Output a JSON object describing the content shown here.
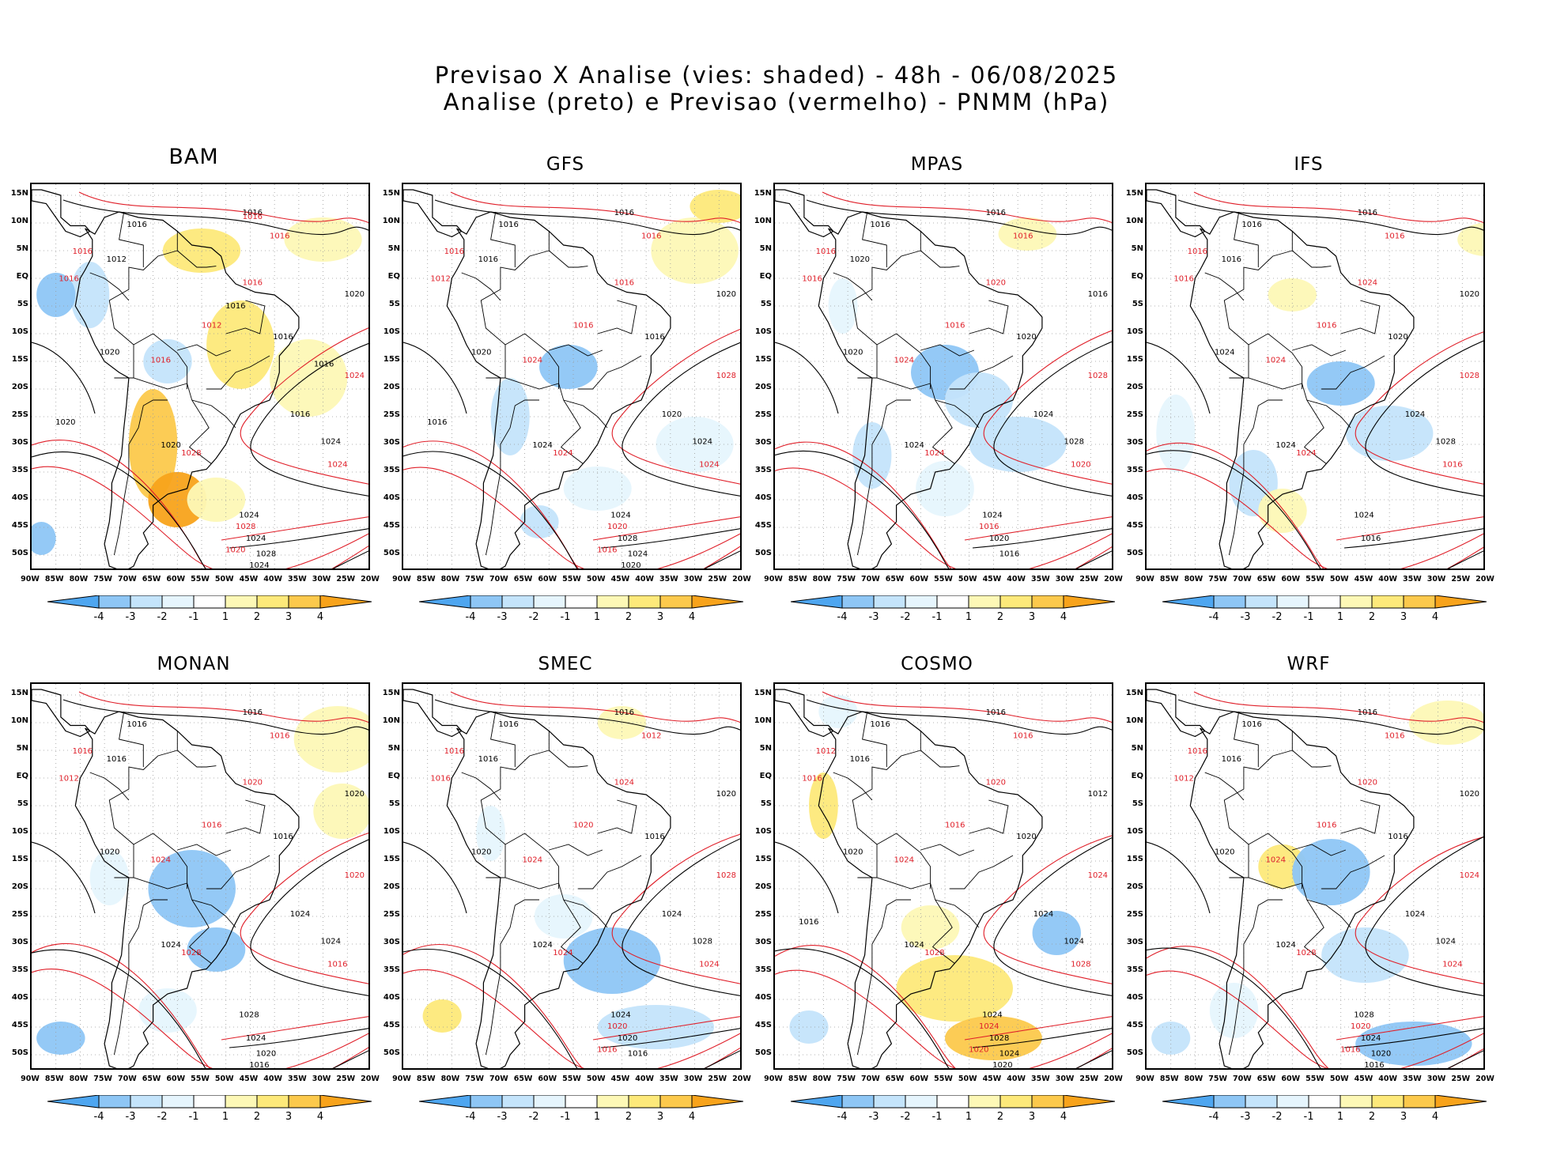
{
  "header": {
    "title_line1": "Previsao X Analise (vies: shaded) - 48h - 06/08/2025",
    "title_line2": "Analise (preto) e Previsao (vermelho) - PNMM (hPa)"
  },
  "colors": {
    "neg4": "#4ea6f0",
    "neg3": "#8ec6f5",
    "neg2": "#c4e4fb",
    "neg1": "#e6f5fd",
    "pos1": "#fdf8b6",
    "pos2": "#fde97a",
    "pos3": "#fcc94c",
    "pos4": "#f8a31b",
    "analysis_contour": "#000000",
    "forecast_contour": "#e0202a"
  },
  "colorbar": {
    "labels": [
      "-4",
      "-3",
      "-2",
      "-1",
      "1",
      "2",
      "3",
      "4"
    ]
  },
  "lat_labels": [
    "15N",
    "10N",
    "5N",
    "EQ",
    "5S",
    "10S",
    "15S",
    "20S",
    "25S",
    "30S",
    "35S",
    "40S",
    "45S",
    "50S"
  ],
  "lon_labels": [
    "90W",
    "85W",
    "80W",
    "75W",
    "70W",
    "65W",
    "60W",
    "55W",
    "50W",
    "45W",
    "40W",
    "35W",
    "30W",
    "25W",
    "20W"
  ],
  "panels": [
    {
      "name": "BAM",
      "contour_labels_black": [
        "1016",
        "1016",
        "1012",
        "1020",
        "1016",
        "1020",
        "1016",
        "1020",
        "1024",
        "1024",
        "1024",
        "1028",
        "1024",
        "1020",
        "1016",
        "1016"
      ],
      "contour_labels_red": [
        "1016",
        "1016",
        "1016",
        "1012",
        "1016",
        "1016",
        "1024",
        "1028",
        "1024",
        "1028",
        "1020",
        "1016"
      ]
    },
    {
      "name": "GFS",
      "contour_labels_black": [
        "1016",
        "1016",
        "1016",
        "1020",
        "1016",
        "1020",
        "1020",
        "1024",
        "1024",
        "1024",
        "1028",
        "1024",
        "1020",
        "1016"
      ],
      "contour_labels_red": [
        "1016",
        "1016",
        "1012",
        "1016",
        "1016",
        "1024",
        "1028",
        "1024",
        "1024",
        "1020",
        "1016"
      ]
    },
    {
      "name": "MPAS",
      "contour_labels_black": [
        "1016",
        "1016",
        "1020",
        "1016",
        "1020",
        "1020",
        "1024",
        "1024",
        "1028",
        "1024",
        "1020",
        "1016"
      ],
      "contour_labels_red": [
        "1016",
        "1016",
        "1016",
        "1016",
        "1020",
        "1024",
        "1028",
        "1024",
        "1020",
        "1016"
      ]
    },
    {
      "name": "IFS",
      "contour_labels_black": [
        "1016",
        "1016",
        "1016",
        "1020",
        "1020",
        "1024",
        "1024",
        "1024",
        "1028",
        "1024",
        "1016"
      ],
      "contour_labels_red": [
        "1016",
        "1016",
        "1016",
        "1016",
        "1024",
        "1024",
        "1028",
        "1024",
        "1016"
      ]
    },
    {
      "name": "MONAN",
      "contour_labels_black": [
        "1016",
        "1016",
        "1016",
        "1020",
        "1016",
        "1020",
        "1024",
        "1024",
        "1024",
        "1028",
        "1024",
        "1020",
        "1016"
      ],
      "contour_labels_red": [
        "1016",
        "1016",
        "1012",
        "1016",
        "1020",
        "1024",
        "1020",
        "1028",
        "1016"
      ]
    },
    {
      "name": "SMEC",
      "contour_labels_black": [
        "1016",
        "1016",
        "1016",
        "1020",
        "1016",
        "1020",
        "1024",
        "1024",
        "1028",
        "1024",
        "1020",
        "1016"
      ],
      "contour_labels_red": [
        "1012",
        "1016",
        "1016",
        "1020",
        "1024",
        "1024",
        "1028",
        "1024",
        "1024",
        "1020",
        "1016"
      ]
    },
    {
      "name": "COSMO",
      "contour_labels_black": [
        "1016",
        "1016",
        "1016",
        "1012",
        "1020",
        "1020",
        "1024",
        "1024",
        "1024",
        "1024",
        "1028",
        "1024",
        "1020",
        "1016"
      ],
      "contour_labels_red": [
        "1016",
        "1012",
        "1016",
        "1016",
        "1020",
        "1024",
        "1024",
        "1028",
        "1028",
        "1024",
        "1020"
      ]
    },
    {
      "name": "WRF",
      "contour_labels_black": [
        "1016",
        "1016",
        "1016",
        "1020",
        "1016",
        "1020",
        "1024",
        "1024",
        "1024",
        "1028",
        "1024",
        "1020",
        "1016"
      ],
      "contour_labels_red": [
        "1016",
        "1016",
        "1012",
        "1016",
        "1020",
        "1024",
        "1024",
        "1028",
        "1024",
        "1020",
        "1016"
      ]
    }
  ]
}
